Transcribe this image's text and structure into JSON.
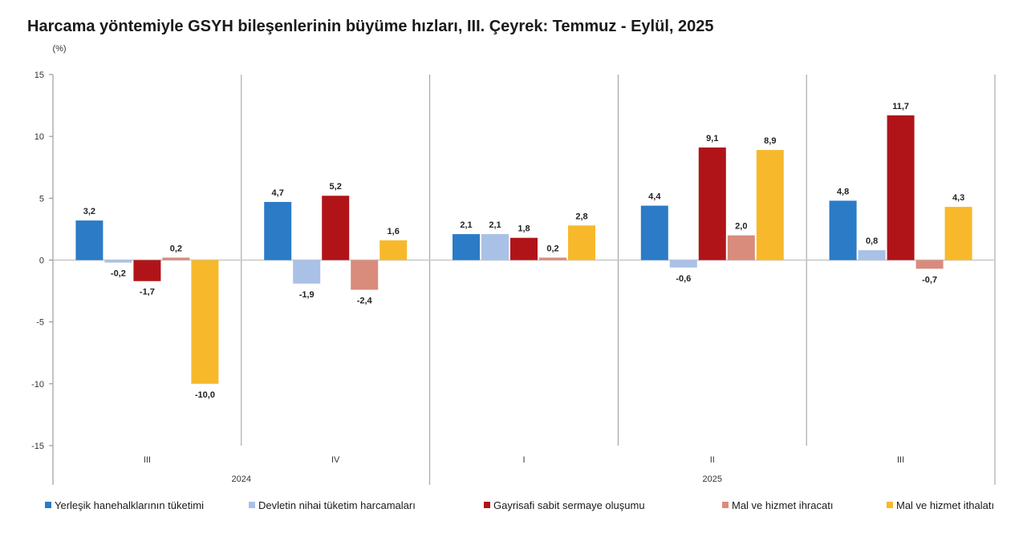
{
  "chart_data": {
    "type": "bar",
    "title": "Harcama yöntemiyle GSYH bileşenlerinin büyüme hızları, III. Çeyrek: Temmuz - Eylül, 2025",
    "ylabel": "(%)",
    "ylim": [
      -15,
      15
    ],
    "yticks": [
      15,
      10,
      5,
      0,
      -5,
      -10,
      -15
    ],
    "categories": [
      "III",
      "IV",
      "I",
      "II",
      "III"
    ],
    "year_groups": [
      {
        "label": "2024",
        "categories": [
          "III",
          "IV"
        ]
      },
      {
        "label": "2025",
        "categories": [
          "I",
          "II",
          "III"
        ]
      }
    ],
    "series": [
      {
        "name": "Yerleşik hanehalklarının tüketimi",
        "color": "#2b7bc6",
        "values": [
          3.2,
          4.7,
          2.1,
          4.4,
          4.8
        ],
        "labels": [
          "3,2",
          "4,7",
          "2,1",
          "4,4",
          "4,8"
        ]
      },
      {
        "name": "Devletin nihai tüketim harcamaları",
        "color": "#a9c1e6",
        "values": [
          -0.2,
          -1.9,
          2.1,
          -0.6,
          0.8
        ],
        "labels": [
          "-0,2",
          "-1,9",
          "2,1",
          "-0,6",
          "0,8"
        ]
      },
      {
        "name": "Gayrisafi sabit sermaye oluşumu",
        "color": "#b01418",
        "values": [
          -1.7,
          5.2,
          1.8,
          9.1,
          11.7
        ],
        "labels": [
          "-1,7",
          "5,2",
          "1,8",
          "9,1",
          "11,7"
        ]
      },
      {
        "name": "Mal ve hizmet ihracatı",
        "color": "#d98b7c",
        "values": [
          0.2,
          -2.4,
          0.2,
          2.0,
          -0.7
        ],
        "labels": [
          "0,2",
          "-2,4",
          "0,2",
          "2,0",
          "-0,7"
        ]
      },
      {
        "name": "Mal ve hizmet ithalatı",
        "color": "#f7b92b",
        "values": [
          -10.0,
          1.6,
          2.8,
          8.9,
          4.3
        ],
        "labels": [
          "-10,0",
          "1,6",
          "2,8",
          "8,9",
          "4,3"
        ]
      }
    ],
    "grid": false,
    "legend": "bottom"
  }
}
